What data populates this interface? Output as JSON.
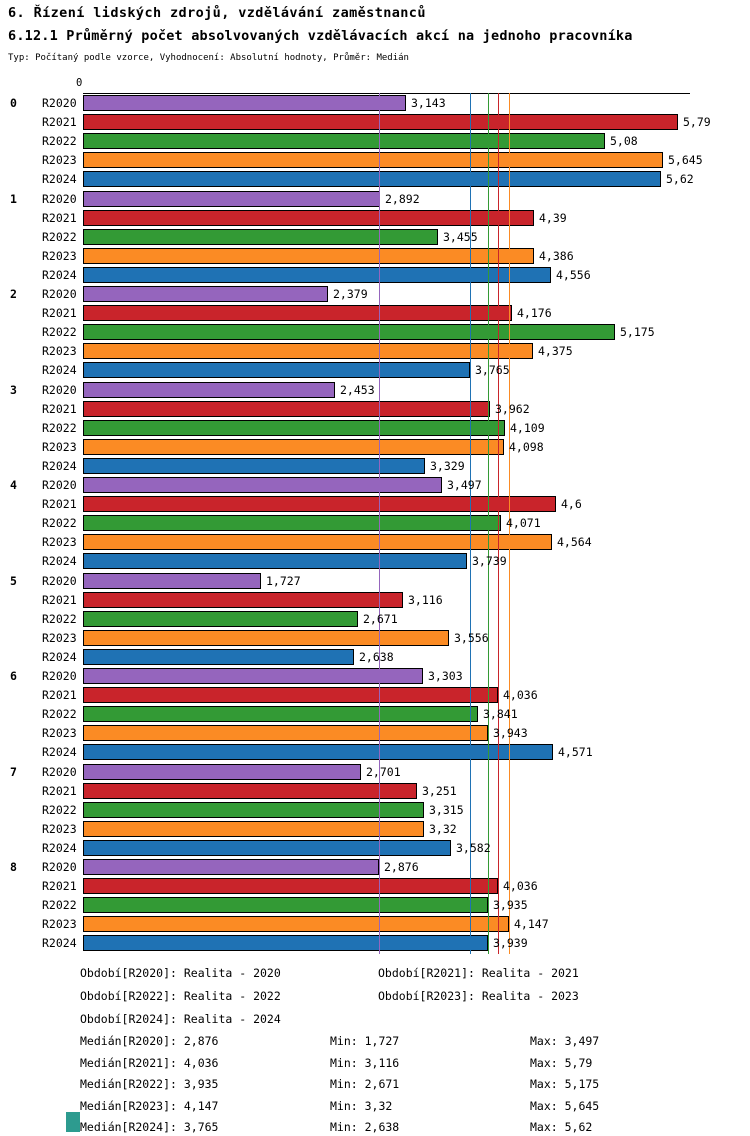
{
  "title": "6. Řízení lidských zdrojů, vzdělávání zaměstnanců",
  "subtitle": "6.12.1 Průměrný počet absolvovaných vzdělávacích akcí na jednoho pracovníka",
  "meta": "Typ: Počítaný podle vzorce, Vyhodnocení: Absolutní hodnoty, Průměr: Medián",
  "chart_data": {
    "type": "bar",
    "orientation": "horizontal",
    "x_axis": {
      "zero_label": "0",
      "xlim": [
        0,
        5.9
      ],
      "grid": false
    },
    "series": [
      {
        "name": "R2020",
        "color": "#9565BD",
        "median": 2.876,
        "median_label": "2,876"
      },
      {
        "name": "R2021",
        "color": "#C9242B",
        "median": 4.036,
        "median_label": "4,036"
      },
      {
        "name": "R2022",
        "color": "#339A35",
        "median": 3.935,
        "median_label": "3,935"
      },
      {
        "name": "R2023",
        "color": "#FB8B24",
        "median": 4.147,
        "median_label": "4,147"
      },
      {
        "name": "R2024",
        "color": "#1F72B4",
        "median": 3.765,
        "median_label": "3,765"
      }
    ],
    "groups": [
      {
        "label": "0",
        "values": [
          3.143,
          5.79,
          5.08,
          5.645,
          5.62
        ],
        "value_labels": [
          "3,143",
          "5,79",
          "5,08",
          "5,645",
          "5,62"
        ]
      },
      {
        "label": "1",
        "values": [
          2.892,
          4.39,
          3.455,
          4.386,
          4.556
        ],
        "value_labels": [
          "2,892",
          "4,39",
          "3,455",
          "4,386",
          "4,556"
        ]
      },
      {
        "label": "2",
        "values": [
          2.379,
          4.176,
          5.175,
          4.375,
          3.765
        ],
        "value_labels": [
          "2,379",
          "4,176",
          "5,175",
          "4,375",
          "3,765"
        ]
      },
      {
        "label": "3",
        "values": [
          2.453,
          3.962,
          4.109,
          4.098,
          3.329
        ],
        "value_labels": [
          "2,453",
          "3,962",
          "4,109",
          "4,098",
          "3,329"
        ]
      },
      {
        "label": "4",
        "values": [
          3.497,
          4.6,
          4.071,
          4.564,
          3.739
        ],
        "value_labels": [
          "3,497",
          "4,6",
          "4,071",
          "4,564",
          "3,739"
        ]
      },
      {
        "label": "5",
        "values": [
          1.727,
          3.116,
          2.671,
          3.556,
          2.638
        ],
        "value_labels": [
          "1,727",
          "3,116",
          "2,671",
          "3,556",
          "2,638"
        ]
      },
      {
        "label": "6",
        "values": [
          3.303,
          4.036,
          3.841,
          3.943,
          4.571
        ],
        "value_labels": [
          "3,303",
          "4,036",
          "3,841",
          "3,943",
          "4,571"
        ]
      },
      {
        "label": "7",
        "values": [
          2.701,
          3.251,
          3.315,
          3.32,
          3.582
        ],
        "value_labels": [
          "2,701",
          "3,251",
          "3,315",
          "3,32",
          "3,582"
        ]
      },
      {
        "label": "8",
        "values": [
          2.876,
          4.036,
          3.935,
          4.147,
          3.939
        ],
        "value_labels": [
          "2,876",
          "4,036",
          "3,935",
          "4,147",
          "3,939"
        ]
      }
    ]
  },
  "legend": {
    "rows": [
      [
        "Období[R2020]: Realita - 2020",
        "Období[R2021]: Realita - 2021"
      ],
      [
        "Období[R2022]: Realita - 2022",
        "Období[R2023]: Realita - 2023"
      ],
      [
        "Období[R2024]: Realita - 2024",
        ""
      ]
    ]
  },
  "stats": [
    {
      "median": "Medián[R2020]: 2,876",
      "min": "Min: 1,727",
      "max": "Max: 3,497"
    },
    {
      "median": "Medián[R2021]: 4,036",
      "min": "Min: 3,116",
      "max": "Max: 5,79"
    },
    {
      "median": "Medián[R2022]: 3,935",
      "min": "Min: 2,671",
      "max": "Max: 5,175"
    },
    {
      "median": "Medián[R2023]: 4,147",
      "min": "Min: 3,32",
      "max": "Max: 5,645"
    },
    {
      "median": "Medián[R2024]: 3,765",
      "min": "Min: 2,638",
      "max": "Max: 5,62"
    }
  ]
}
